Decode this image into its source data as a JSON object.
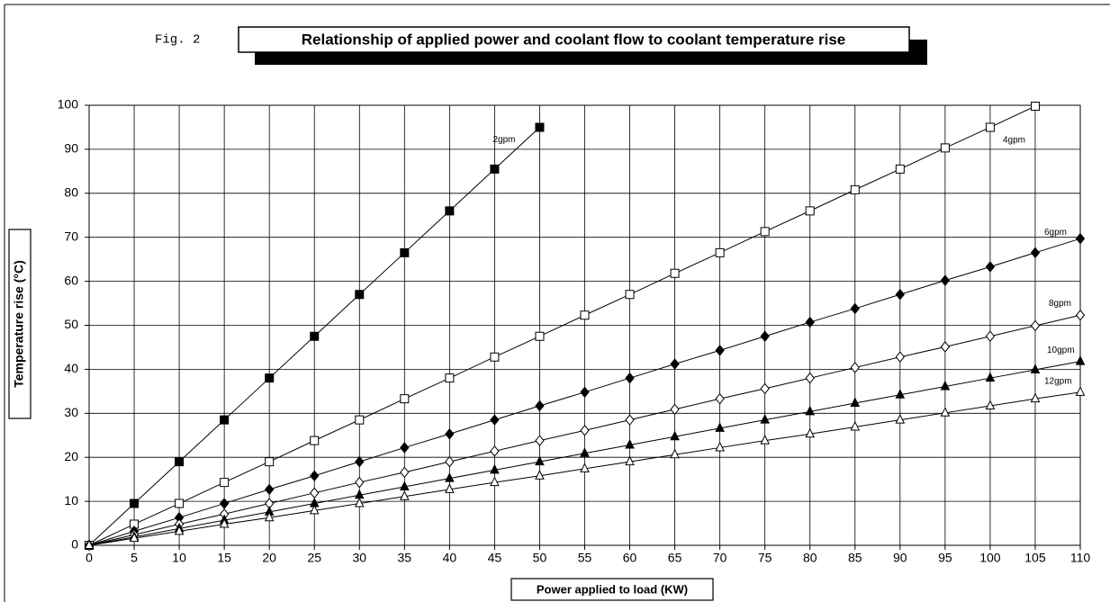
{
  "chart_data": {
    "type": "line",
    "figure_label": "Fig. 2",
    "title": "Relationship of applied power and coolant flow to coolant temperature rise",
    "x_label": "Power applied to load (KW)",
    "y_label": "Temperature rise (°C)",
    "x": [
      0,
      5,
      10,
      15,
      20,
      25,
      30,
      35,
      40,
      45,
      50,
      55,
      60,
      65,
      70,
      75,
      80,
      85,
      90,
      95,
      100,
      105,
      110
    ],
    "xlim": [
      0,
      110
    ],
    "xticks": [
      0,
      5,
      10,
      15,
      20,
      25,
      30,
      35,
      40,
      45,
      50,
      55,
      60,
      65,
      70,
      75,
      80,
      85,
      90,
      95,
      100,
      105,
      110
    ],
    "ylim": [
      0,
      100
    ],
    "yticks": [
      0,
      10,
      20,
      30,
      40,
      50,
      60,
      70,
      80,
      90,
      100
    ],
    "grid": true,
    "series": [
      {
        "name": "2gpm",
        "color": "#000000",
        "marker": "square-filled",
        "values": [
          0,
          9.5,
          19,
          28.5,
          38,
          47.5,
          57,
          66.5,
          76,
          85.5,
          95,
          null,
          null,
          null,
          null,
          null,
          null,
          null,
          null,
          null,
          null,
          null,
          null
        ]
      },
      {
        "name": "4gpm",
        "color": "#000000",
        "marker": "square-open",
        "values": [
          0,
          4.8,
          9.5,
          14.3,
          19,
          23.8,
          28.5,
          33.3,
          38,
          42.8,
          47.5,
          52.3,
          57,
          61.8,
          66.5,
          71.3,
          76,
          80.8,
          85.5,
          90.3,
          95,
          99.8,
          null
        ]
      },
      {
        "name": "6gpm",
        "color": "#000000",
        "marker": "diamond-filled",
        "values": [
          0,
          3.2,
          6.3,
          9.5,
          12.7,
          15.8,
          19,
          22.2,
          25.3,
          28.5,
          31.7,
          34.8,
          38,
          41.2,
          44.3,
          47.5,
          50.7,
          53.8,
          57,
          60.2,
          63.3,
          66.5,
          69.7
        ]
      },
      {
        "name": "8gpm",
        "color": "#000000",
        "marker": "diamond-open",
        "values": [
          0,
          2.4,
          4.8,
          7.1,
          9.5,
          11.9,
          14.3,
          16.6,
          19,
          21.4,
          23.8,
          26.1,
          28.5,
          30.9,
          33.3,
          35.6,
          38,
          40.4,
          42.8,
          45.1,
          47.5,
          49.9,
          52.3
        ]
      },
      {
        "name": "10gpm",
        "color": "#000000",
        "marker": "triangle-filled",
        "values": [
          0,
          1.9,
          3.8,
          5.7,
          7.6,
          9.5,
          11.4,
          13.3,
          15.2,
          17.1,
          19,
          20.9,
          22.8,
          24.7,
          26.6,
          28.5,
          30.4,
          32.3,
          34.2,
          36.1,
          38,
          39.9,
          41.8
        ]
      },
      {
        "name": "12gpm",
        "color": "#000000",
        "marker": "triangle-open",
        "values": [
          0,
          1.6,
          3.2,
          4.8,
          6.3,
          7.9,
          9.5,
          11.1,
          12.7,
          14.3,
          15.8,
          17.4,
          19,
          20.6,
          22.2,
          23.8,
          25.3,
          26.9,
          28.5,
          30.1,
          31.7,
          33.3,
          34.8
        ]
      }
    ]
  }
}
